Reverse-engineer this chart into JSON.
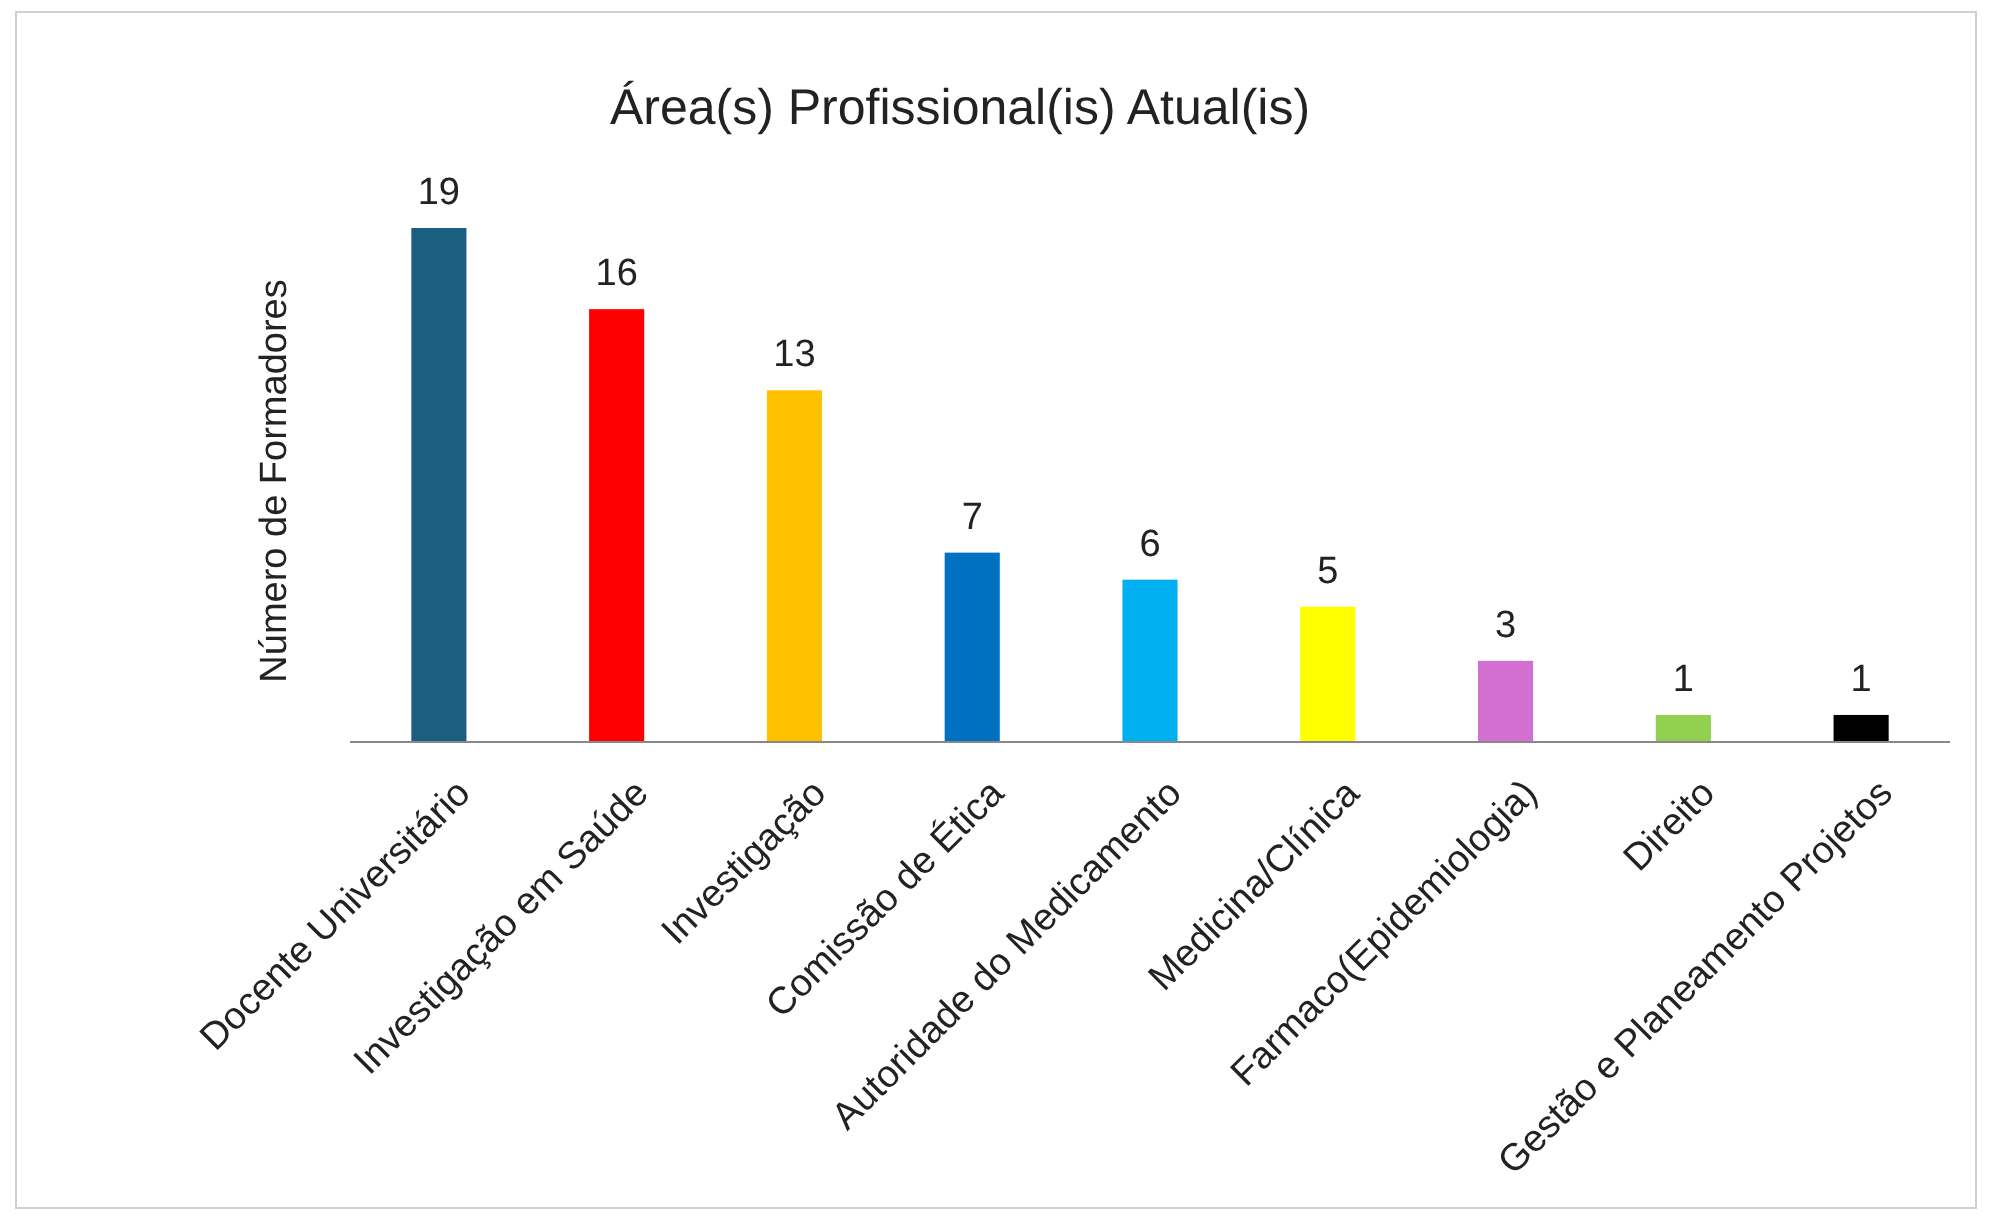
{
  "chart_data": {
    "type": "bar",
    "title": "Área(s) Profissional(is) Atual(is)",
    "ylabel": "Número de Formadores",
    "categories": [
      "Docente Universitário",
      "Investigação em Saúde",
      "Investigação",
      "Comissão de Ética",
      "Autoridade do Medicamento",
      "Medicina/Clínica",
      "Farmaco(Epidemiologia)",
      "Direito",
      "Gestão e Planeamento Projetos"
    ],
    "values": [
      19,
      16,
      13,
      7,
      6,
      5,
      3,
      1,
      1
    ],
    "colors": [
      "#1b5e80",
      "#ff0000",
      "#ffc000",
      "#0070c0",
      "#00b0f0",
      "#ffff00",
      "#d36fd0",
      "#92d050",
      "#000000"
    ],
    "data_labels": true
  }
}
